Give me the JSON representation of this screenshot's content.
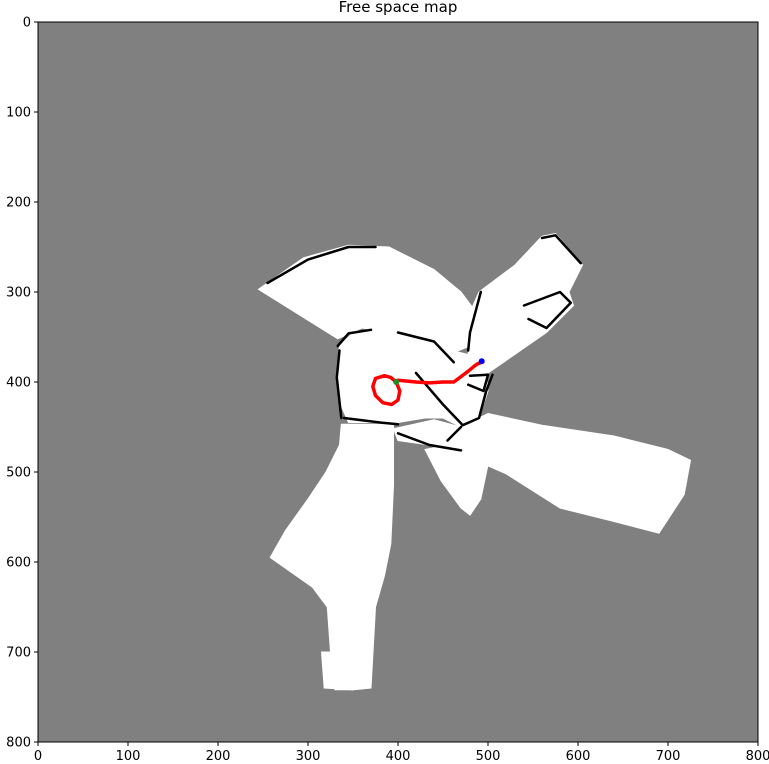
{
  "chart_data": {
    "type": "heatmap",
    "title": "Free space map",
    "xlim": [
      0,
      800
    ],
    "ylim": [
      800,
      0
    ],
    "xticks": [
      0,
      100,
      200,
      300,
      400,
      500,
      600,
      700,
      800
    ],
    "yticks": [
      0,
      100,
      200,
      300,
      400,
      500,
      600,
      700,
      800
    ],
    "colors": {
      "unknown": "#808080",
      "free": "#ffffff",
      "obstacle": "#000000",
      "path": "#ff0000",
      "start": "#228b22",
      "end": "#0000ff"
    },
    "free_regions": [
      [
        [
          245,
          297
        ],
        [
          262,
          285
        ],
        [
          295,
          262
        ],
        [
          345,
          248
        ],
        [
          390,
          250
        ],
        [
          440,
          275
        ],
        [
          470,
          300
        ],
        [
          485,
          320
        ],
        [
          480,
          360
        ],
        [
          455,
          370
        ],
        [
          440,
          358
        ],
        [
          400,
          348
        ],
        [
          360,
          340
        ],
        [
          333,
          352
        ]
      ],
      [
        [
          478,
          362
        ],
        [
          470,
          345
        ],
        [
          490,
          300
        ],
        [
          530,
          270
        ],
        [
          560,
          238
        ],
        [
          575,
          235
        ],
        [
          605,
          270
        ],
        [
          590,
          300
        ],
        [
          595,
          315
        ],
        [
          565,
          345
        ],
        [
          500,
          390
        ],
        [
          478,
          375
        ]
      ],
      [
        [
          335,
          360
        ],
        [
          350,
          345
        ],
        [
          390,
          340
        ],
        [
          435,
          350
        ],
        [
          460,
          365
        ],
        [
          480,
          370
        ],
        [
          497,
          383
        ],
        [
          500,
          410
        ],
        [
          490,
          440
        ],
        [
          470,
          450
        ],
        [
          450,
          440
        ],
        [
          430,
          440
        ],
        [
          400,
          445
        ],
        [
          380,
          445
        ],
        [
          345,
          445
        ],
        [
          334,
          420
        ],
        [
          332,
          390
        ]
      ],
      [
        [
          395,
          452
        ],
        [
          440,
          442
        ],
        [
          470,
          450
        ],
        [
          500,
          435
        ],
        [
          560,
          448
        ],
        [
          640,
          460
        ],
        [
          700,
          475
        ],
        [
          725,
          487
        ],
        [
          718,
          525
        ],
        [
          690,
          568
        ],
        [
          640,
          555
        ],
        [
          580,
          540
        ],
        [
          520,
          502
        ],
        [
          470,
          480
        ],
        [
          435,
          470
        ],
        [
          400,
          465
        ]
      ],
      [
        [
          430,
          475
        ],
        [
          455,
          470
        ],
        [
          480,
          482
        ],
        [
          500,
          492
        ],
        [
          492,
          530
        ],
        [
          480,
          548
        ],
        [
          470,
          540
        ],
        [
          448,
          510
        ]
      ],
      [
        [
          337,
          447
        ],
        [
          395,
          447
        ],
        [
          395,
          515
        ],
        [
          392,
          580
        ],
        [
          385,
          615
        ],
        [
          375,
          650
        ],
        [
          370,
          740
        ],
        [
          350,
          742
        ],
        [
          345,
          690
        ],
        [
          330,
          680
        ],
        [
          325,
          655
        ],
        [
          305,
          628
        ],
        [
          258,
          595
        ],
        [
          275,
          565
        ],
        [
          300,
          530
        ],
        [
          320,
          500
        ],
        [
          335,
          470
        ]
      ],
      [
        [
          320,
          630
        ],
        [
          350,
          630
        ],
        [
          355,
          700
        ],
        [
          350,
          742
        ],
        [
          330,
          742
        ],
        [
          325,
          700
        ]
      ],
      [
        [
          315,
          700
        ],
        [
          345,
          700
        ],
        [
          350,
          742
        ],
        [
          318,
          740
        ]
      ]
    ],
    "obstacle_segments": [
      [
        [
          255,
          290
        ],
        [
          300,
          264
        ],
        [
          345,
          250
        ],
        [
          375,
          250
        ]
      ],
      [
        [
          333,
          360
        ],
        [
          345,
          346
        ],
        [
          370,
          342
        ]
      ],
      [
        [
          400,
          345
        ],
        [
          440,
          355
        ],
        [
          462,
          378
        ]
      ],
      [
        [
          335,
          365
        ],
        [
          332,
          395
        ],
        [
          337,
          440
        ]
      ],
      [
        [
          340,
          440
        ],
        [
          380,
          445
        ],
        [
          400,
          447
        ]
      ],
      [
        [
          420,
          390
        ],
        [
          450,
          425
        ],
        [
          472,
          448
        ],
        [
          490,
          440
        ],
        [
          498,
          410
        ],
        [
          505,
          392
        ]
      ],
      [
        [
          478,
          365
        ],
        [
          480,
          345
        ],
        [
          492,
          300
        ]
      ],
      [
        [
          560,
          240
        ],
        [
          575,
          237
        ],
        [
          603,
          268
        ]
      ],
      [
        [
          480,
          393
        ],
        [
          500,
          392
        ],
        [
          495,
          410
        ],
        [
          478,
          403
        ]
      ],
      [
        [
          400,
          457
        ],
        [
          435,
          470
        ],
        [
          470,
          476
        ]
      ],
      [
        [
          470,
          450
        ],
        [
          455,
          465
        ]
      ],
      [
        [
          540,
          315
        ],
        [
          580,
          300
        ],
        [
          592,
          312
        ],
        [
          565,
          340
        ],
        [
          545,
          330
        ]
      ]
    ],
    "path": {
      "x": [
        398,
        400,
        410,
        420,
        435,
        450,
        462,
        470,
        478,
        484,
        488,
        493
      ],
      "y": [
        400,
        398,
        399,
        400,
        401,
        400,
        400,
        394,
        388,
        383,
        380,
        378
      ]
    },
    "path_loop": {
      "x": [
        398,
        392,
        385,
        375,
        372,
        375,
        383,
        393,
        400,
        402,
        398
      ],
      "y": [
        400,
        395,
        393,
        396,
        405,
        415,
        423,
        425,
        420,
        410,
        400
      ]
    },
    "start_point": {
      "x": 398,
      "y": 400
    },
    "end_point": {
      "x": 493,
      "y": 377
    }
  }
}
